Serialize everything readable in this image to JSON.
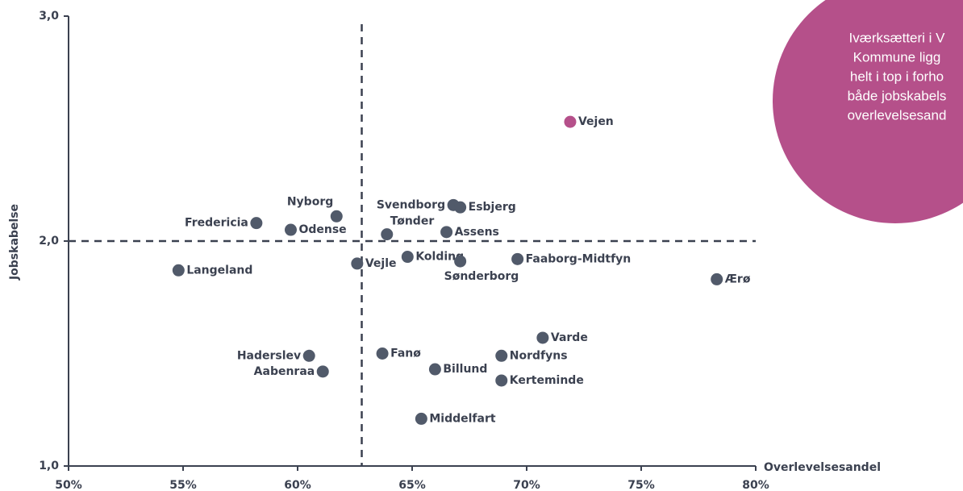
{
  "chart_data": {
    "type": "scatter",
    "xlabel": "Overlevelsesandel",
    "ylabel": "Jobskabelse",
    "labels": [
      "Vejen",
      "Svendborg",
      "Esbjerg",
      "Nyborg",
      "Fredericia",
      "Odense",
      "Tønder",
      "Assens",
      "Langeland",
      "Vejle",
      "Kolding",
      "Sønderborg",
      "Faaborg-Midtfyn",
      "Ærø",
      "Varde",
      "Haderslev",
      "Fanø",
      "Nordfyns",
      "Aabenraa",
      "Billund",
      "Kerteminde",
      "Middelfart"
    ],
    "x": [
      71.9,
      66.8,
      67.1,
      61.7,
      58.2,
      59.7,
      63.9,
      66.5,
      54.8,
      62.6,
      64.8,
      67.1,
      69.6,
      78.3,
      70.7,
      60.5,
      63.7,
      68.9,
      61.1,
      66.0,
      68.9,
      65.4
    ],
    "y": [
      2.53,
      2.16,
      2.15,
      2.11,
      2.08,
      2.05,
      2.03,
      2.04,
      1.87,
      1.9,
      1.93,
      1.91,
      1.92,
      1.83,
      1.57,
      1.49,
      1.5,
      1.49,
      1.42,
      1.43,
      1.38,
      1.21
    ],
    "colors": [
      "#b5508a",
      "#515a6a",
      "#515a6a",
      "#515a6a",
      "#515a6a",
      "#515a6a",
      "#515a6a",
      "#515a6a",
      "#515a6a",
      "#515a6a",
      "#515a6a",
      "#515a6a",
      "#515a6a",
      "#515a6a",
      "#515a6a",
      "#515a6a",
      "#515a6a",
      "#515a6a",
      "#515a6a",
      "#515a6a",
      "#515a6a",
      "#515a6a"
    ],
    "xlim": [
      50,
      80
    ],
    "ylim": [
      1.0,
      3.0
    ],
    "xticks": [
      {
        "value": 50,
        "label": "50%"
      },
      {
        "value": 55,
        "label": "55%"
      },
      {
        "value": 60,
        "label": "60%"
      },
      {
        "value": 65,
        "label": "65%"
      },
      {
        "value": 70,
        "label": "70%"
      },
      {
        "value": 75,
        "label": "75%"
      },
      {
        "value": 80,
        "label": "80%"
      }
    ],
    "yticks": [
      {
        "value": 1,
        "label": "1,0"
      },
      {
        "value": 2,
        "label": "2,0"
      },
      {
        "value": 3,
        "label": "3,0"
      }
    ],
    "ref_x": 62.8,
    "ref_y": 2.0,
    "annotation": [
      "Iværksætteri i V",
      "Kommune ligg",
      "helt i top i forho",
      "både jobskabels",
      "overlevelsesand"
    ],
    "annotation_color": "#b5508a"
  }
}
